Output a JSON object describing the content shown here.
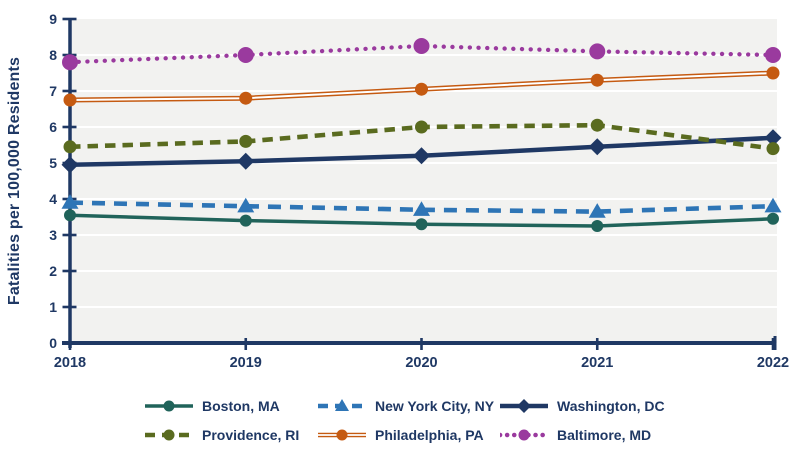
{
  "chart_data": {
    "type": "line",
    "title": "",
    "ylabel": "Fatalities per 100,000 Residents",
    "xlabel": "",
    "x": [
      2018,
      2019,
      2020,
      2021,
      2022
    ],
    "ylim": [
      0,
      9
    ],
    "y_ticks": [
      0,
      1,
      2,
      3,
      4,
      5,
      6,
      7,
      8,
      9
    ],
    "grid": "horizontal white gridlines on light gray panel",
    "legend_position": "bottom",
    "series": [
      {
        "name": "Boston, MA",
        "values": [
          3.55,
          3.4,
          3.3,
          3.25,
          3.45
        ],
        "color": "#20635A",
        "line_style": "solid",
        "marker": "circle"
      },
      {
        "name": "New York City, NY",
        "values": [
          3.9,
          3.8,
          3.7,
          3.65,
          3.8
        ],
        "color": "#2E75B6",
        "line_style": "dashed",
        "marker": "triangle"
      },
      {
        "name": "Washington, DC",
        "values": [
          4.95,
          5.05,
          5.2,
          5.45,
          5.7
        ],
        "color": "#1F3864",
        "line_style": "solid",
        "marker": "diamond"
      },
      {
        "name": "Providence, RI",
        "values": [
          5.45,
          5.6,
          6.0,
          6.05,
          5.4
        ],
        "color": "#5A6B1F",
        "line_style": "dashed",
        "marker": "circle"
      },
      {
        "name": "Philadelphia, PA",
        "values": [
          6.75,
          6.8,
          7.05,
          7.3,
          7.5
        ],
        "color": "#C55A11",
        "line_style": "double",
        "marker": "circle"
      },
      {
        "name": "Baltimore, MD",
        "values": [
          7.8,
          8.0,
          8.25,
          8.1,
          8.0
        ],
        "color": "#9A3A9E",
        "line_style": "dotted",
        "marker": "circle"
      }
    ],
    "colors": {
      "axis": "#1F3864",
      "text": "#1F3864",
      "plot_background": "#F2F2F0",
      "gridline": "#FFFFFF"
    }
  }
}
